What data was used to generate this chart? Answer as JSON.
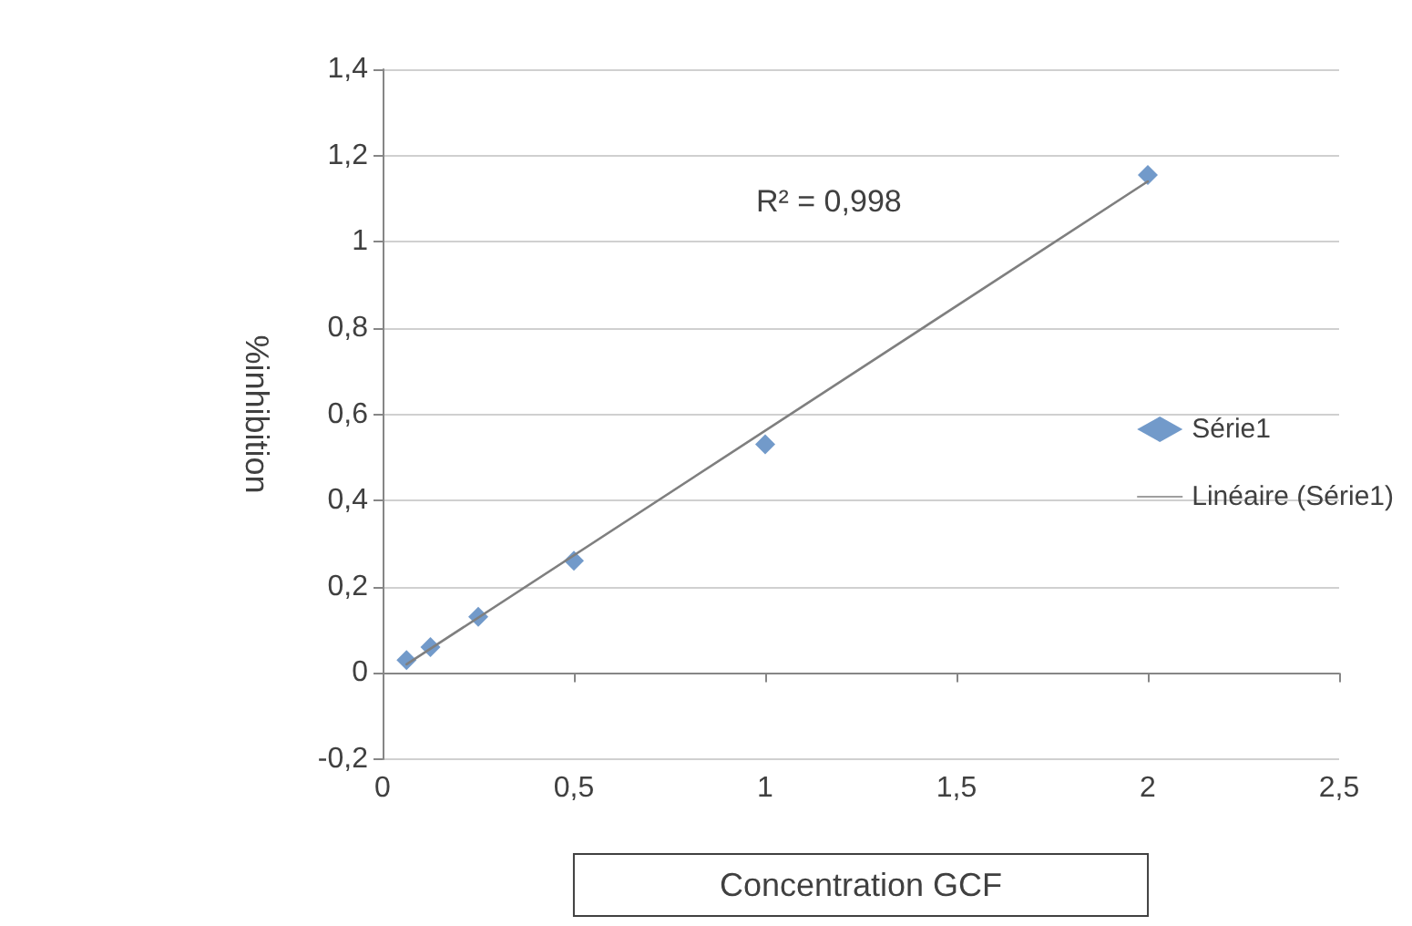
{
  "chart_data": {
    "type": "scatter",
    "xlabel": "Concentration GCF",
    "ylabel": "%inhibition",
    "annotations": [
      "R² = 0,998"
    ],
    "xlim": [
      0,
      2.5
    ],
    "xticks": [
      0,
      {
        "value": 0.5,
        "label": "0,5"
      },
      1,
      {
        "value": 1.5,
        "label": "1,5"
      },
      2,
      {
        "value": 2.5,
        "label": "2,5"
      }
    ],
    "ylim": [
      -0.2,
      1.4
    ],
    "yticks": [
      {
        "value": -0.2,
        "label": "-0,2"
      },
      0,
      {
        "value": 0.2,
        "label": "0,2"
      },
      {
        "value": 0.4,
        "label": "0,4"
      },
      {
        "value": 0.6,
        "label": "0,6"
      },
      {
        "value": 0.8,
        "label": "0,8"
      },
      1,
      {
        "value": 1.2,
        "label": "1,2"
      },
      {
        "value": 1.4,
        "label": "1,4"
      }
    ],
    "grid": "y",
    "legend": "right",
    "series": [
      {
        "name": "Série1",
        "marker": "diamond",
        "color": "#4f81bd",
        "x": [
          0.0625,
          0.125,
          0.25,
          0.5,
          1,
          2
        ],
        "values": [
          0.03,
          0.06,
          0.13,
          0.26,
          0.53,
          1.155
        ]
      },
      {
        "name": "Linéaire (Série1)",
        "type": "line",
        "marker": "none",
        "line_style": "solid",
        "color": "#7f7f7f",
        "x": [
          0.0625,
          2
        ],
        "values": [
          0.02,
          1.14
        ]
      }
    ]
  }
}
